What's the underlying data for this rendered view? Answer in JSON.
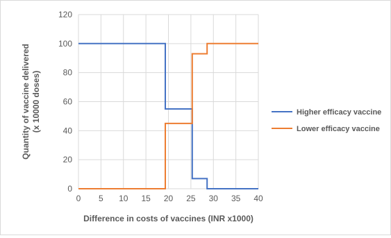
{
  "chart_data": {
    "type": "line",
    "title": "",
    "xlabel": "Difference in costs of vaccines (INR x1000)",
    "ylabel_lines": [
      "Quantity of vaccine delivered",
      "(x 10000 doses)"
    ],
    "xlim": [
      0,
      40
    ],
    "ylim": [
      0,
      120
    ],
    "x_ticks": [
      0,
      5,
      10,
      15,
      20,
      25,
      30,
      35,
      40
    ],
    "y_ticks": [
      0,
      20,
      40,
      60,
      80,
      100,
      120
    ],
    "grid": true,
    "legend_position": "right",
    "series": [
      {
        "name": "Higher efficacy vaccine",
        "color": "#4472c4",
        "x": [
          0,
          19.3,
          19.3,
          25.3,
          25.3,
          28.6,
          28.6,
          40
        ],
        "y": [
          100,
          100,
          55,
          55,
          7,
          7,
          0,
          0
        ]
      },
      {
        "name": "Lower efficacy vaccine",
        "color": "#ed7d31",
        "x": [
          0,
          19.3,
          19.3,
          25.3,
          25.3,
          28.6,
          28.6,
          40
        ],
        "y": [
          0,
          0,
          45,
          45,
          93,
          93,
          100,
          100
        ]
      }
    ]
  }
}
